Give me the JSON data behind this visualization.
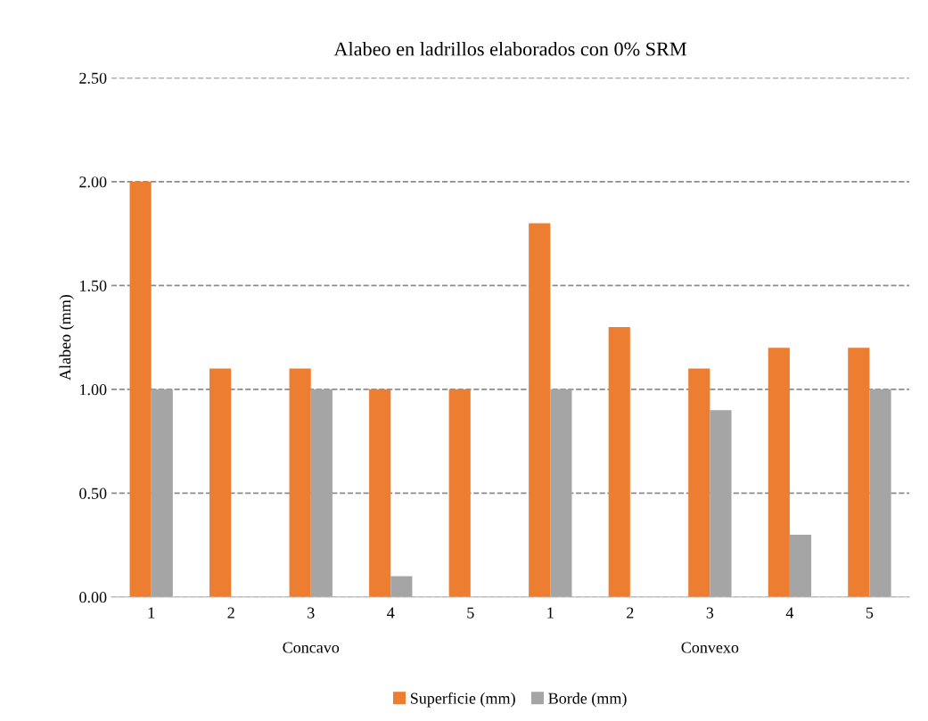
{
  "chart_data": {
    "type": "bar",
    "title": "Alabeo en ladrillos elaborados con 0% SRM",
    "ylabel": "Alabeo (mm)",
    "categories": [
      "1",
      "2",
      "3",
      "4",
      "5",
      "1",
      "2",
      "3",
      "4",
      "5"
    ],
    "annotations": [
      "Concavo",
      "Convexo"
    ],
    "series": [
      {
        "name": "Superficie (mm)",
        "color": "#ed7d31",
        "values": [
          2.0,
          1.1,
          1.1,
          1.0,
          1.0,
          1.8,
          1.3,
          1.1,
          1.2,
          1.2
        ]
      },
      {
        "name": "Borde (mm)",
        "color": "#a5a5a5",
        "values": [
          1.0,
          0,
          1.0,
          0.1,
          0,
          1.0,
          0,
          0.9,
          0.3,
          1.0
        ]
      }
    ],
    "ylim": [
      0,
      2.5
    ],
    "yticks": [
      {
        "value": 0,
        "label": "0.00"
      },
      {
        "value": 0.5,
        "label": "0.50"
      },
      {
        "value": 1.0,
        "label": "1.00"
      },
      {
        "value": 1.5,
        "label": "1.50"
      },
      {
        "value": 2.0,
        "label": "2.00"
      },
      {
        "value": 2.5,
        "label": "2.50"
      }
    ],
    "grid": "y",
    "legend": "bottom"
  }
}
